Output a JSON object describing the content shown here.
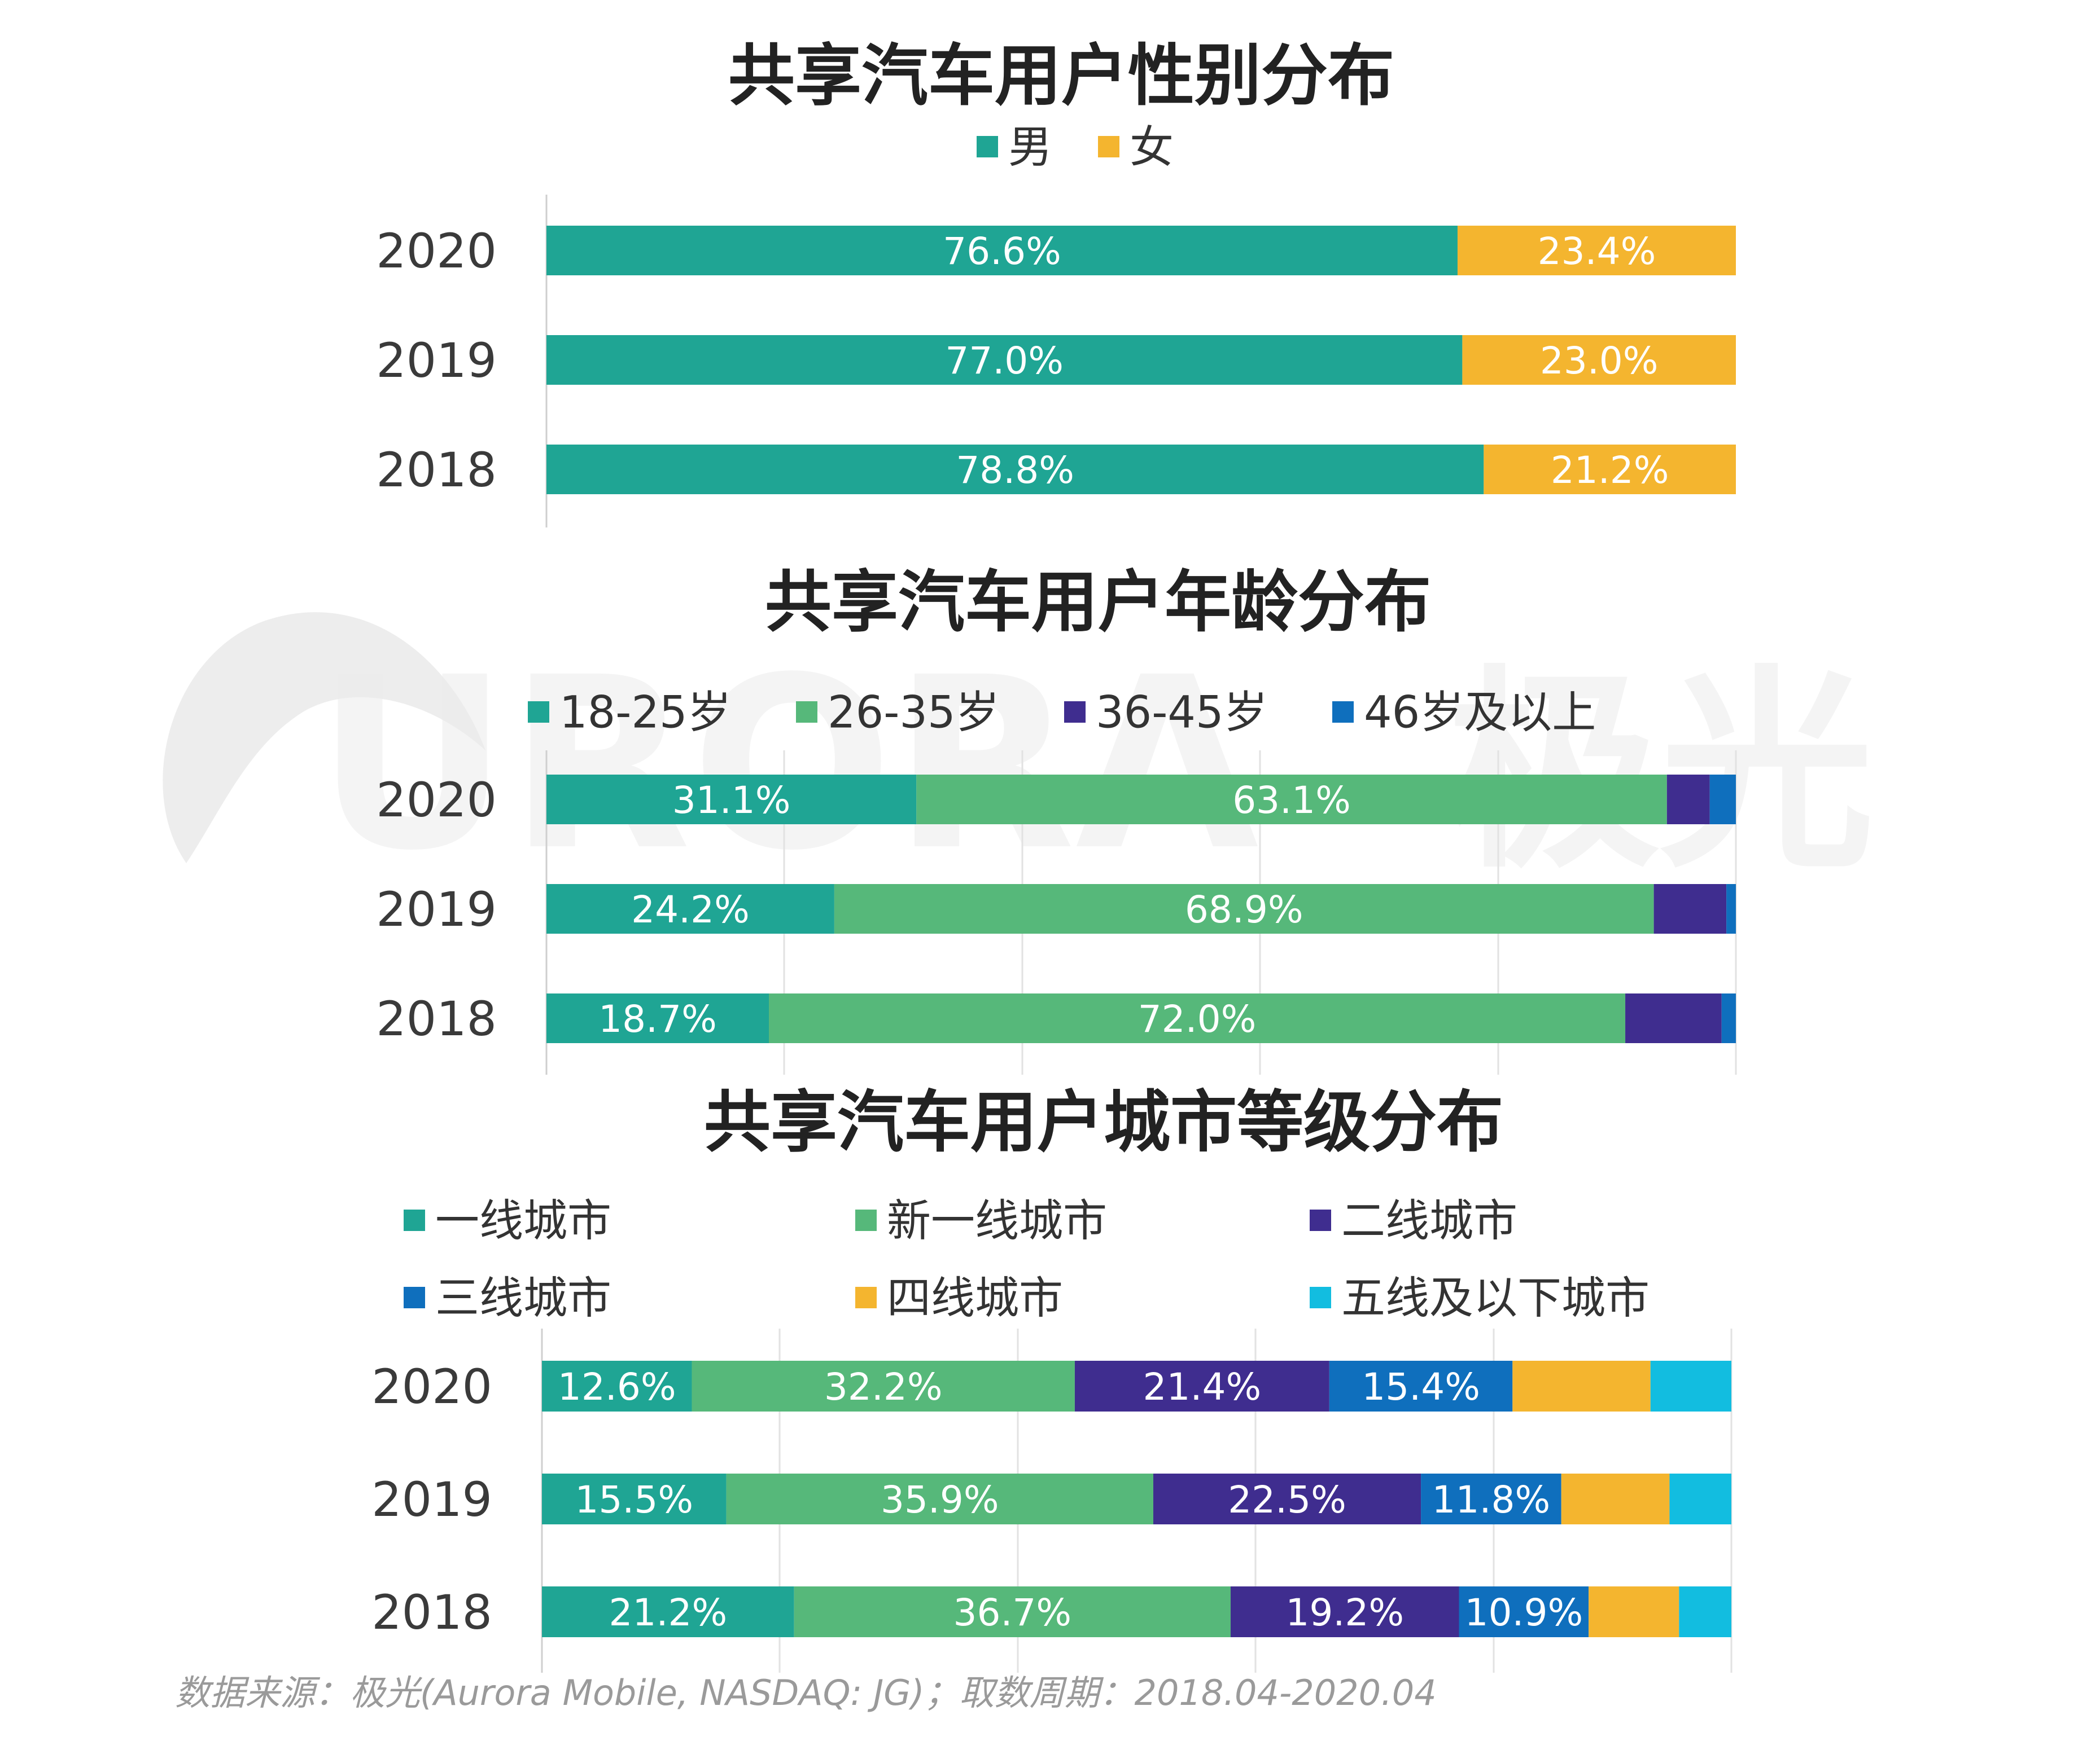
{
  "palette": {
    "teal": "#1fa594",
    "green": "#56b87a",
    "purple": "#3f2d8f",
    "blue": "#0f6fbd",
    "yellow": "#f4b52f",
    "cyan": "#12bde0",
    "grid": "#e2e2e2",
    "axis": "#cfcfcf"
  },
  "watermark": {
    "brand_text": "URORA",
    "brand_cn": "极光"
  },
  "source_note": "数据来源：极光(Aurora Mobile, NASDAQ: JG)；取数周期：2018.04-2020.04",
  "chart_data": [
    {
      "type": "bar",
      "orientation": "horizontal",
      "stacked": true,
      "title": "共享汽车用户性别分布",
      "categories": [
        "2020",
        "2019",
        "2018"
      ],
      "series": [
        {
          "name": "男",
          "color_key": "teal",
          "values": [
            76.6,
            77.0,
            78.8
          ],
          "labels": [
            "76.6%",
            "77.0%",
            "78.8%"
          ]
        },
        {
          "name": "女",
          "color_key": "yellow",
          "values": [
            23.4,
            23.0,
            21.2
          ],
          "labels": [
            "23.4%",
            "23.0%",
            "21.2%"
          ]
        }
      ],
      "xlim": [
        0,
        100
      ],
      "grid": false,
      "legend_position": "top-center"
    },
    {
      "type": "bar",
      "orientation": "horizontal",
      "stacked": true,
      "title": "共享汽车用户年龄分布",
      "categories": [
        "2020",
        "2019",
        "2018"
      ],
      "series": [
        {
          "name": "18-25岁",
          "color_key": "teal",
          "values": [
            31.1,
            24.2,
            18.7
          ],
          "labels": [
            "31.1%",
            "24.2%",
            "18.7%"
          ]
        },
        {
          "name": "26-35岁",
          "color_key": "green",
          "values": [
            63.1,
            68.9,
            72.0
          ],
          "labels": [
            "63.1%",
            "68.9%",
            "72.0%"
          ]
        },
        {
          "name": "36-45岁",
          "color_key": "purple",
          "values": [
            3.6,
            6.1,
            8.1
          ],
          "labels": [
            "",
            "",
            ""
          ]
        },
        {
          "name": "46岁及以上",
          "color_key": "blue",
          "values": [
            2.2,
            0.8,
            1.2
          ],
          "labels": [
            "",
            "",
            ""
          ]
        }
      ],
      "xlim": [
        0,
        100
      ],
      "grid": true,
      "legend_position": "top"
    },
    {
      "type": "bar",
      "orientation": "horizontal",
      "stacked": true,
      "title": "共享汽车用户城市等级分布",
      "categories": [
        "2020",
        "2019",
        "2018"
      ],
      "series": [
        {
          "name": "一线城市",
          "color_key": "teal",
          "values": [
            12.6,
            15.5,
            21.2
          ],
          "labels": [
            "12.6%",
            "15.5%",
            "21.2%"
          ]
        },
        {
          "name": "新一线城市",
          "color_key": "green",
          "values": [
            32.2,
            35.9,
            36.7
          ],
          "labels": [
            "32.2%",
            "35.9%",
            "36.7%"
          ]
        },
        {
          "name": "二线城市",
          "color_key": "purple",
          "values": [
            21.4,
            22.5,
            19.2
          ],
          "labels": [
            "21.4%",
            "22.5%",
            "19.2%"
          ]
        },
        {
          "name": "三线城市",
          "color_key": "blue",
          "values": [
            15.4,
            11.8,
            10.9
          ],
          "labels": [
            "15.4%",
            "11.8%",
            "10.9%"
          ]
        },
        {
          "name": "四线城市",
          "color_key": "yellow",
          "values": [
            11.6,
            9.1,
            7.6
          ],
          "labels": [
            "",
            "",
            ""
          ]
        },
        {
          "name": "五线及以下城市",
          "color_key": "cyan",
          "values": [
            6.8,
            5.2,
            4.4
          ],
          "labels": [
            "",
            "",
            ""
          ]
        }
      ],
      "xlim": [
        0,
        100
      ],
      "grid": true,
      "legend_position": "top"
    }
  ]
}
